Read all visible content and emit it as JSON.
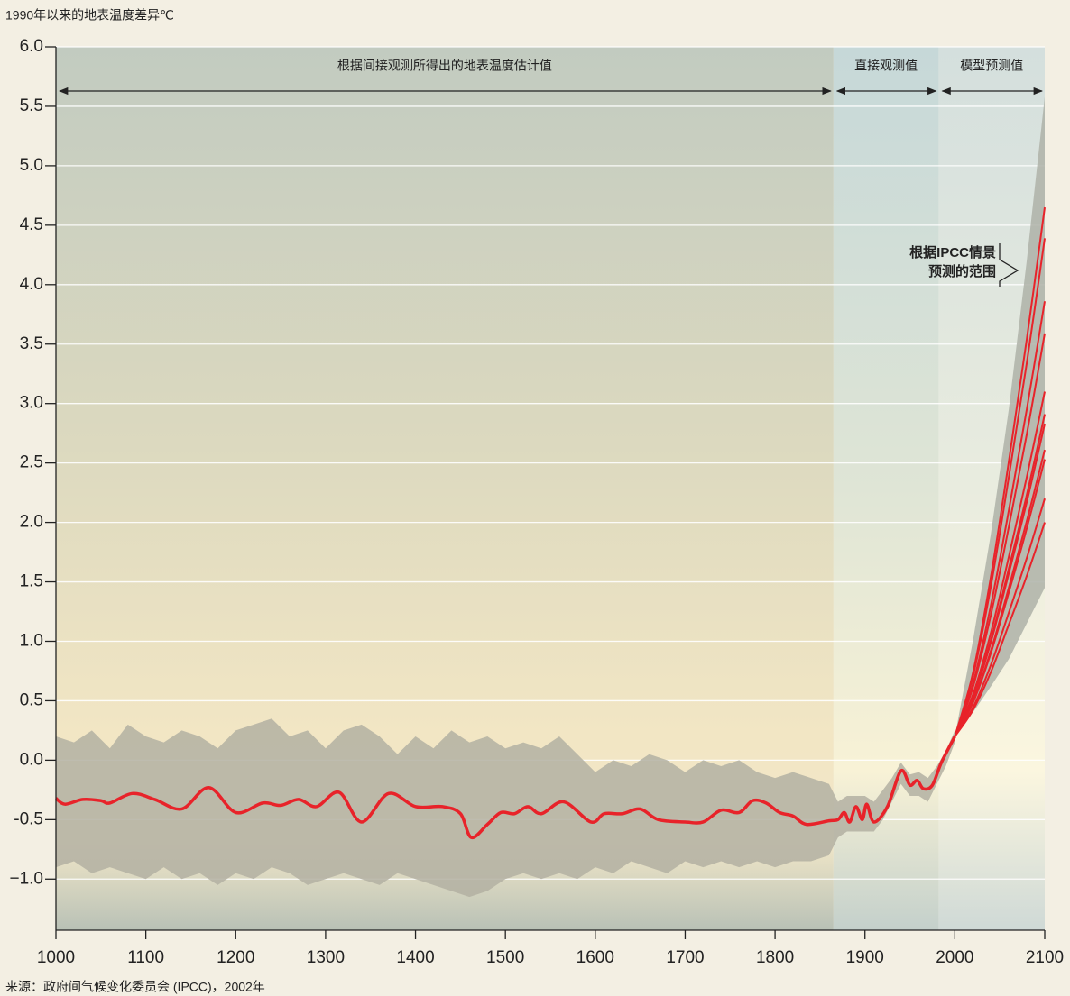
{
  "chart_data": {
    "type": "line",
    "title": "1990年以来的地表温度差异℃",
    "source": "来源：政府间气候变化委员会 (IPCC)，2002年",
    "periods": [
      {
        "label": "根据间接观测所得出的地表温度估计值",
        "start": 1000,
        "end": 1865
      },
      {
        "label": "直接观测值",
        "start": 1865,
        "end": 1982
      },
      {
        "label": "模型预测值",
        "start": 1982,
        "end": 2100
      }
    ],
    "annotation": [
      "根据IPCC情景",
      "预测的范围"
    ],
    "xlim": [
      1000,
      2100
    ],
    "ylim": [
      -1.43,
      6.0
    ],
    "xticks": [
      1000,
      1100,
      1200,
      1300,
      1400,
      1500,
      1600,
      1700,
      1800,
      1900,
      2000,
      2100
    ],
    "yticks": [
      {
        "value": 6,
        "label": "6.0"
      },
      5.5,
      {
        "value": 5,
        "label": "5.0"
      },
      4.5,
      {
        "value": 4,
        "label": "4.0"
      },
      3.5,
      {
        "value": 3,
        "label": "3.0"
      },
      2.5,
      {
        "value": 2,
        "label": "2.0"
      },
      1.5,
      {
        "value": 1,
        "label": "1.0"
      },
      0.5,
      {
        "value": 0,
        "label": "0.0"
      },
      -0.5,
      {
        "value": -1,
        "label": "−1.0"
      }
    ],
    "grid": true,
    "band": {
      "color": "#b3b0a2",
      "x": [
        1000,
        1020,
        1040,
        1060,
        1080,
        1100,
        1120,
        1140,
        1160,
        1180,
        1200,
        1220,
        1240,
        1260,
        1280,
        1300,
        1320,
        1340,
        1360,
        1380,
        1400,
        1420,
        1440,
        1460,
        1480,
        1500,
        1520,
        1540,
        1560,
        1580,
        1600,
        1620,
        1640,
        1660,
        1680,
        1700,
        1720,
        1740,
        1760,
        1780,
        1800,
        1820,
        1840,
        1860,
        1870,
        1880,
        1890,
        1900,
        1910,
        1920,
        1930,
        1940,
        1950,
        1960,
        1970,
        1980,
        1990,
        2000
      ],
      "upper": [
        0.2,
        0.15,
        0.25,
        0.1,
        0.3,
        0.2,
        0.15,
        0.25,
        0.2,
        0.1,
        0.25,
        0.3,
        0.35,
        0.2,
        0.25,
        0.1,
        0.25,
        0.3,
        0.2,
        0.05,
        0.2,
        0.1,
        0.25,
        0.15,
        0.2,
        0.1,
        0.15,
        0.1,
        0.2,
        0.05,
        -0.1,
        0.0,
        -0.05,
        0.05,
        0.0,
        -0.1,
        0.0,
        -0.05,
        0.0,
        -0.1,
        -0.15,
        -0.1,
        -0.15,
        -0.2,
        -0.35,
        -0.3,
        -0.3,
        -0.3,
        -0.35,
        -0.25,
        -0.15,
        -0.02,
        -0.12,
        -0.1,
        -0.15,
        -0.05,
        0.08,
        0.25
      ],
      "lower": [
        -0.9,
        -0.85,
        -0.95,
        -0.9,
        -0.95,
        -1.0,
        -0.9,
        -1.0,
        -0.95,
        -1.05,
        -0.95,
        -1.0,
        -0.9,
        -0.95,
        -1.05,
        -1.0,
        -0.95,
        -1.0,
        -1.05,
        -0.95,
        -1.0,
        -1.05,
        -1.1,
        -1.15,
        -1.1,
        -1.0,
        -0.95,
        -1.0,
        -0.95,
        -1.0,
        -0.9,
        -0.95,
        -0.85,
        -0.9,
        -0.95,
        -0.85,
        -0.9,
        -0.85,
        -0.9,
        -0.85,
        -0.9,
        -0.85,
        -0.85,
        -0.8,
        -0.65,
        -0.6,
        -0.6,
        -0.6,
        -0.6,
        -0.5,
        -0.35,
        -0.2,
        -0.3,
        -0.3,
        -0.35,
        -0.2,
        -0.05,
        0.15
      ]
    },
    "envelope": {
      "color": "#aeb1a8",
      "x": [
        2000,
        2020,
        2040,
        2060,
        2080,
        2100
      ],
      "upper": [
        0.2,
        1.0,
        1.9,
        2.95,
        4.2,
        5.58
      ],
      "lower": [
        0.2,
        0.4,
        0.62,
        0.85,
        1.15,
        1.45
      ]
    },
    "series": [
      {
        "color": "#e8232a",
        "x": [
          1000,
          1010,
          1030,
          1050,
          1060,
          1085,
          1110,
          1140,
          1170,
          1200,
          1230,
          1250,
          1270,
          1290,
          1315,
          1340,
          1370,
          1400,
          1430,
          1450,
          1462,
          1480,
          1495,
          1510,
          1525,
          1540,
          1565,
          1595,
          1610,
          1630,
          1650,
          1670,
          1700,
          1720,
          1740,
          1760,
          1775,
          1790,
          1805,
          1820,
          1835,
          1860,
          1870,
          1877,
          1883,
          1890,
          1897,
          1902,
          1910,
          1925,
          1940,
          1950,
          1958,
          1965,
          1975,
          1985,
          2000
        ],
        "values": [
          -0.32,
          -0.37,
          -0.33,
          -0.34,
          -0.36,
          -0.28,
          -0.33,
          -0.41,
          -0.23,
          -0.44,
          -0.36,
          -0.38,
          -0.33,
          -0.39,
          -0.27,
          -0.52,
          -0.28,
          -0.39,
          -0.39,
          -0.45,
          -0.65,
          -0.54,
          -0.44,
          -0.45,
          -0.39,
          -0.45,
          -0.35,
          -0.52,
          -0.45,
          -0.45,
          -0.41,
          -0.5,
          -0.52,
          -0.52,
          -0.42,
          -0.44,
          -0.34,
          -0.36,
          -0.44,
          -0.47,
          -0.54,
          -0.51,
          -0.5,
          -0.44,
          -0.52,
          -0.39,
          -0.5,
          -0.37,
          -0.52,
          -0.39,
          -0.09,
          -0.21,
          -0.17,
          -0.24,
          -0.21,
          -0.02,
          0.2
        ]
      },
      {
        "color": "#e8232a",
        "x": [
          2000,
          2020,
          2040,
          2060,
          2080,
          2100
        ],
        "values": [
          0.2,
          0.73,
          1.54,
          2.51,
          3.54,
          4.65
        ]
      },
      {
        "color": "#e8232a",
        "x": [
          2000,
          2020,
          2040,
          2060,
          2080,
          2100
        ],
        "values": [
          0.2,
          0.7,
          1.46,
          2.38,
          3.34,
          4.39
        ]
      },
      {
        "color": "#e8232a",
        "x": [
          2000,
          2020,
          2040,
          2060,
          2080,
          2100
        ],
        "values": [
          0.2,
          0.64,
          1.3,
          2.1,
          2.95,
          3.86
        ]
      },
      {
        "color": "#e8232a",
        "x": [
          2000,
          2020,
          2040,
          2060,
          2080,
          2100
        ],
        "values": [
          0.2,
          0.61,
          1.22,
          1.96,
          2.74,
          3.59
        ]
      },
      {
        "color": "#e8232a",
        "x": [
          2000,
          2020,
          2040,
          2060,
          2080,
          2100
        ],
        "values": [
          0.2,
          0.55,
          1.07,
          1.71,
          2.38,
          3.1
        ]
      },
      {
        "color": "#e8232a",
        "x": [
          2000,
          2020,
          2040,
          2060,
          2080,
          2100
        ],
        "values": [
          0.2,
          0.53,
          1.01,
          1.61,
          2.23,
          2.91
        ]
      },
      {
        "color": "#e8232a",
        "x": [
          2000,
          2020,
          2040,
          2060,
          2080,
          2100
        ],
        "values": [
          0.2,
          0.52,
          0.99,
          1.57,
          2.17,
          2.83
        ]
      },
      {
        "color": "#e8232a",
        "x": [
          2000,
          2020,
          2040,
          2060,
          2080,
          2100
        ],
        "values": [
          0.2,
          0.49,
          0.92,
          1.45,
          2.01,
          2.61
        ]
      },
      {
        "color": "#e8232a",
        "x": [
          2000,
          2020,
          2040,
          2060,
          2080,
          2100
        ],
        "values": [
          0.2,
          0.48,
          0.9,
          1.41,
          1.95,
          2.53
        ]
      },
      {
        "color": "#e8232a",
        "x": [
          2000,
          2020,
          2040,
          2060,
          2080,
          2100
        ],
        "values": [
          0.2,
          0.44,
          0.8,
          1.24,
          1.7,
          2.2
        ]
      },
      {
        "color": "#e8232a",
        "x": [
          2000,
          2020,
          2040,
          2060,
          2080,
          2100
        ],
        "values": [
          0.2,
          0.42,
          0.74,
          1.14,
          1.55,
          2.0
        ]
      }
    ]
  }
}
